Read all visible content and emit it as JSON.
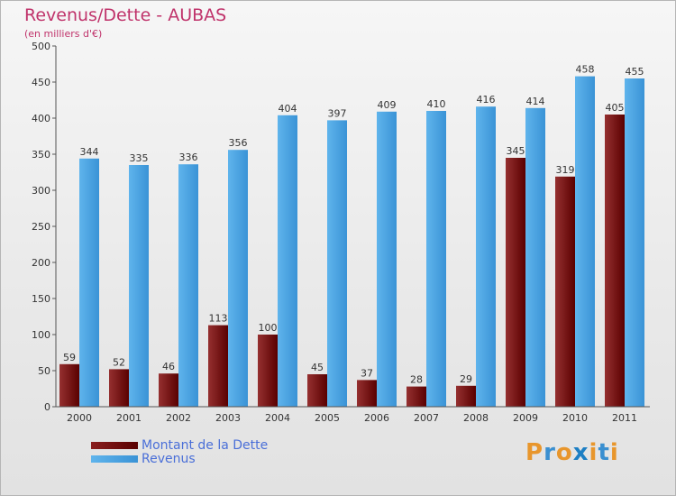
{
  "chart_data": {
    "type": "bar",
    "title": "Revenus/Dette - AUBAS",
    "subtitle": "(en milliers d'€)",
    "categories": [
      "2000",
      "2001",
      "2002",
      "2003",
      "2004",
      "2005",
      "2006",
      "2007",
      "2008",
      "2009",
      "2010",
      "2011"
    ],
    "series": [
      {
        "name": "Montant de la Dette",
        "color": "#7a1212",
        "values": [
          59,
          52,
          46,
          113,
          100,
          45,
          37,
          28,
          29,
          345,
          319,
          405
        ]
      },
      {
        "name": "Revenus",
        "color": "#4aa3e0",
        "values": [
          344,
          335,
          336,
          356,
          404,
          397,
          409,
          410,
          416,
          414,
          458,
          455
        ]
      }
    ],
    "ylim": [
      0,
      500
    ],
    "yticks": [
      0,
      50,
      100,
      150,
      200,
      250,
      300,
      350,
      400,
      450,
      500
    ],
    "grid": false,
    "legend": "bottom-left"
  },
  "logo": {
    "text": "Proxiti",
    "colors": [
      "#e8962c",
      "#3a8fd0",
      "#e8962c",
      "#1d7fc4",
      "#e8962c",
      "#3a8fd0",
      "#e8962c"
    ]
  }
}
